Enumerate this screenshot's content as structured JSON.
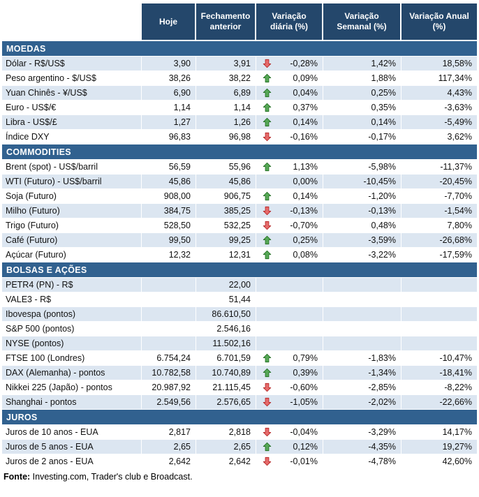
{
  "colors": {
    "header_bg": "#24476B",
    "section_bg": "#31618F",
    "row_shaded_bg": "#DCE6F1",
    "arrow_up_fill": "#57A857",
    "arrow_up_stroke": "#1E6B1E",
    "arrow_down_fill": "#E66B6B",
    "arrow_down_stroke": "#B22222"
  },
  "chart_data": {
    "type": "table",
    "title": "",
    "columns": [
      "",
      "Hoje",
      "Fechamento anterior",
      "Variação diária (%)",
      "Variação Semanal (%)",
      "Variação Anual (%)"
    ],
    "sections": [
      {
        "title": "MOEDAS",
        "zebra_start": "shaded",
        "rows": [
          {
            "label": "Dólar - R$/US$",
            "hoje": "3,90",
            "fechamento": "3,91",
            "arrow": "down",
            "var_diaria": "-0,28%",
            "var_semanal": "1,42%",
            "var_anual": "18,58%"
          },
          {
            "label": "Peso argentino - $/US$",
            "hoje": "38,26",
            "fechamento": "38,22",
            "arrow": "up",
            "var_diaria": "0,09%",
            "var_semanal": "1,88%",
            "var_anual": "117,34%"
          },
          {
            "label": "Yuan Chinês - ¥/US$",
            "hoje": "6,90",
            "fechamento": "6,89",
            "arrow": "up",
            "var_diaria": "0,04%",
            "var_semanal": "0,25%",
            "var_anual": "4,43%"
          },
          {
            "label": "Euro - US$/€",
            "hoje": "1,14",
            "fechamento": "1,14",
            "arrow": "up",
            "var_diaria": "0,37%",
            "var_semanal": "0,35%",
            "var_anual": "-3,63%"
          },
          {
            "label": "Libra - US$/£",
            "hoje": "1,27",
            "fechamento": "1,26",
            "arrow": "up",
            "var_diaria": "0,14%",
            "var_semanal": "0,14%",
            "var_anual": "-5,49%"
          },
          {
            "label": "Índice DXY",
            "hoje": "96,83",
            "fechamento": "96,98",
            "arrow": "down",
            "var_diaria": "-0,16%",
            "var_semanal": "-0,17%",
            "var_anual": "3,62%"
          }
        ]
      },
      {
        "title": "COMMODITIES",
        "zebra_start": "plain",
        "rows": [
          {
            "label": "Brent (spot) - US$/barril",
            "hoje": "56,59",
            "fechamento": "55,96",
            "arrow": "up",
            "var_diaria": "1,13%",
            "var_semanal": "-5,98%",
            "var_anual": "-11,37%"
          },
          {
            "label": "WTI (Futuro) - US$/barril",
            "hoje": "45,86",
            "fechamento": "45,86",
            "arrow": "",
            "var_diaria": "0,00%",
            "var_semanal": "-10,45%",
            "var_anual": "-20,45%"
          },
          {
            "label": "Soja (Futuro)",
            "hoje": "908,00",
            "fechamento": "906,75",
            "arrow": "up",
            "var_diaria": "0,14%",
            "var_semanal": "-1,20%",
            "var_anual": "-7,70%"
          },
          {
            "label": "Milho (Futuro)",
            "hoje": "384,75",
            "fechamento": "385,25",
            "arrow": "down",
            "var_diaria": "-0,13%",
            "var_semanal": "-0,13%",
            "var_anual": "-1,54%"
          },
          {
            "label": "Trigo (Futuro)",
            "hoje": "528,50",
            "fechamento": "532,25",
            "arrow": "down",
            "var_diaria": "-0,70%",
            "var_semanal": "0,48%",
            "var_anual": "7,80%"
          },
          {
            "label": "Café (Futuro)",
            "hoje": "99,50",
            "fechamento": "99,25",
            "arrow": "up",
            "var_diaria": "0,25%",
            "var_semanal": "-3,59%",
            "var_anual": "-26,68%"
          },
          {
            "label": "Açúcar (Futuro)",
            "hoje": "12,32",
            "fechamento": "12,31",
            "arrow": "up",
            "var_diaria": "0,08%",
            "var_semanal": "-3,22%",
            "var_anual": "-17,59%"
          }
        ]
      },
      {
        "title": "BOLSAS E AÇÕES",
        "zebra_start": "shaded",
        "rows": [
          {
            "label": "PETR4 (PN) - R$",
            "hoje": "",
            "fechamento": "22,00",
            "arrow": "",
            "var_diaria": "",
            "var_semanal": "",
            "var_anual": ""
          },
          {
            "label": "VALE3 - R$",
            "hoje": "",
            "fechamento": "51,44",
            "arrow": "",
            "var_diaria": "",
            "var_semanal": "",
            "var_anual": ""
          },
          {
            "label": "Ibovespa (pontos)",
            "hoje": "",
            "fechamento": "86.610,50",
            "arrow": "",
            "var_diaria": "",
            "var_semanal": "",
            "var_anual": ""
          },
          {
            "label": "S&P 500 (pontos)",
            "hoje": "",
            "fechamento": "2.546,16",
            "arrow": "",
            "var_diaria": "",
            "var_semanal": "",
            "var_anual": ""
          },
          {
            "label": "NYSE (pontos)",
            "hoje": "",
            "fechamento": "11.502,16",
            "arrow": "",
            "var_diaria": "",
            "var_semanal": "",
            "var_anual": ""
          },
          {
            "label": "FTSE 100 (Londres)",
            "hoje": "6.754,24",
            "fechamento": "6.701,59",
            "arrow": "up",
            "var_diaria": "0,79%",
            "var_semanal": "-1,83%",
            "var_anual": "-10,47%"
          },
          {
            "label": "DAX (Alemanha) - pontos",
            "hoje": "10.782,58",
            "fechamento": "10.740,89",
            "arrow": "up",
            "var_diaria": "0,39%",
            "var_semanal": "-1,34%",
            "var_anual": "-18,41%"
          },
          {
            "label": "Nikkei 225 (Japão) - pontos",
            "hoje": "20.987,92",
            "fechamento": "21.115,45",
            "arrow": "down",
            "var_diaria": "-0,60%",
            "var_semanal": "-2,85%",
            "var_anual": "-8,22%"
          },
          {
            "label": "Shanghai - pontos",
            "hoje": "2.549,56",
            "fechamento": "2.576,65",
            "arrow": "down",
            "var_diaria": "-1,05%",
            "var_semanal": "-2,02%",
            "var_anual": "-22,66%"
          }
        ]
      },
      {
        "title": "JUROS",
        "zebra_start": "plain",
        "rows": [
          {
            "label": "Juros de 10 anos - EUA",
            "hoje": "2,817",
            "fechamento": "2,818",
            "arrow": "down",
            "var_diaria": "-0,04%",
            "var_semanal": "-3,29%",
            "var_anual": "14,17%"
          },
          {
            "label": "Juros de 5 anos - EUA",
            "hoje": "2,65",
            "fechamento": "2,65",
            "arrow": "up",
            "var_diaria": "0,12%",
            "var_semanal": "-4,35%",
            "var_anual": "19,27%"
          },
          {
            "label": "Juros de 2 anos - EUA",
            "hoje": "2,642",
            "fechamento": "2,642",
            "arrow": "down",
            "var_diaria": "-0,01%",
            "var_semanal": "-4,78%",
            "var_anual": "42,60%"
          }
        ]
      }
    ],
    "footer": {
      "label": "Fonte:",
      "text": " Investing.com, Trader's club e Broadcast."
    }
  }
}
